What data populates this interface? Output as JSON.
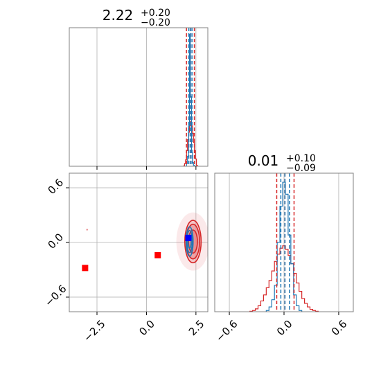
{
  "chart_data": {
    "type": "corner",
    "parameters": [
      {
        "id": "p1",
        "title": {
          "main": "2.22",
          "sup": "+0.20",
          "sub": "−0.20"
        },
        "range": [
          -3.9,
          3.1
        ],
        "ticks": [
          {
            "value": -2.5,
            "label": "−2.5"
          },
          {
            "value": 0.0,
            "label": "0.0"
          },
          {
            "value": 2.5,
            "label": "2.5"
          }
        ],
        "quantiles": {
          "blue": [
            2.14,
            2.22,
            2.3
          ],
          "red": [
            2.02,
            2.22,
            2.42
          ]
        }
      },
      {
        "id": "p2",
        "title": {
          "main": "0.01",
          "sup": "+0.10",
          "sub": "−0.09"
        },
        "range": [
          -0.76,
          0.76
        ],
        "ticks": [
          {
            "value": -0.6,
            "label": "−0.6"
          },
          {
            "value": 0.0,
            "label": "0.0"
          },
          {
            "value": 0.6,
            "label": "0.6"
          }
        ],
        "quantiles": {
          "blue": [
            -0.035,
            0.01,
            0.06
          ],
          "red": [
            -0.08,
            0.01,
            0.11
          ]
        }
      }
    ],
    "hist1d": {
      "p1": {
        "blue": {
          "x": [
            2.05,
            2.1,
            2.15,
            2.2,
            2.25,
            2.3,
            2.35,
            2.4
          ],
          "y": [
            0.15,
            0.55,
            2.2,
            7.2,
            3.8,
            0.75,
            0.2,
            0.05
          ]
        },
        "red": {
          "x": [
            1.9,
            1.95,
            2.0,
            2.05,
            2.1,
            2.15,
            2.2,
            2.25,
            2.3,
            2.35,
            2.4,
            2.45,
            2.5,
            2.55
          ],
          "y": [
            0.02,
            0.15,
            0.35,
            0.85,
            1.45,
            1.85,
            2.2,
            2.45,
            2.2,
            1.8,
            1.3,
            0.85,
            0.4,
            0.05
          ]
        }
      },
      "p2": {
        "blue": {
          "x": [
            -0.18,
            -0.15,
            -0.12,
            -0.09,
            -0.06,
            -0.03,
            0.0,
            0.03,
            0.06,
            0.09,
            0.12,
            0.15,
            0.18
          ],
          "y": [
            0.05,
            0.2,
            0.5,
            1.1,
            2.9,
            4.4,
            5.4,
            4.9,
            3.2,
            2.0,
            0.7,
            0.25,
            0.05
          ]
        },
        "red": {
          "x": [
            -0.36,
            -0.33,
            -0.3,
            -0.27,
            -0.24,
            -0.21,
            -0.18,
            -0.15,
            -0.12,
            -0.09,
            -0.06,
            -0.03,
            0.0,
            0.03,
            0.06,
            0.09,
            0.12,
            0.15,
            0.18,
            0.21,
            0.24,
            0.27,
            0.3,
            0.33,
            0.36
          ],
          "y": [
            0.02,
            0.05,
            0.12,
            0.25,
            0.45,
            0.7,
            1.0,
            1.3,
            1.7,
            2.1,
            2.4,
            2.65,
            2.75,
            2.6,
            2.35,
            2.0,
            1.6,
            1.2,
            0.85,
            0.55,
            0.35,
            0.2,
            0.1,
            0.05,
            0.02
          ]
        }
      }
    },
    "scatter": {
      "red_markers": [
        {
          "x": -3.1,
          "y": -0.28
        },
        {
          "x": 0.57,
          "y": -0.14
        }
      ],
      "blue_marker": {
        "x": 2.12,
        "y": 0.05
      },
      "red_contour": {
        "center": [
          2.35,
          0.01
        ],
        "sx": 0.28,
        "sy": 0.11,
        "levels": [
          0.5,
          0.75,
          0.92
        ]
      },
      "blue_contour": {
        "center": [
          2.18,
          0.01
        ],
        "sx": 0.11,
        "sy": 0.07,
        "levels": [
          0.45,
          0.75,
          1.0
        ]
      },
      "outlier": {
        "x": -3.0,
        "y": 0.14
      }
    },
    "colors": {
      "blue": "#1f77b4",
      "red": "#d62728",
      "red_fill": "#e8878a",
      "grid": "#b0b0b0",
      "axes": "#808080",
      "marker_blue": "#0000ff",
      "marker_red": "#ff0000"
    },
    "grid": true
  }
}
